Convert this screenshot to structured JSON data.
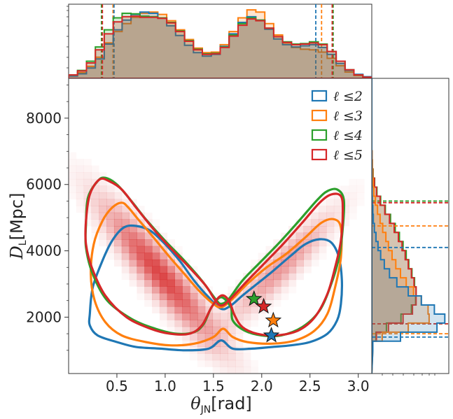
{
  "chart_data": {
    "type": "scatter",
    "subtype": "corner-plot-2d-density-with-marginal-histograms",
    "xlabel_main": "θ",
    "xlabel_sub": "JN",
    "xlabel_unit": "[rad]",
    "ylabel_main": "D",
    "ylabel_sub": "L",
    "ylabel_unit": "[Mpc]",
    "xlim": [
      0,
      3.14
    ],
    "ylim": [
      300,
      9200
    ],
    "xticks": [
      0.5,
      1.0,
      1.5,
      2.0,
      2.5,
      3.0
    ],
    "xtick_labels": [
      "0.5",
      "1.0",
      "1.5",
      "2.0",
      "2.5",
      "3.0"
    ],
    "yticks": [
      2000,
      4000,
      6000,
      8000
    ],
    "ytick_labels": [
      "2000",
      "4000",
      "6000",
      "8000"
    ],
    "colors": {
      "l2": "#1f77b4",
      "l3": "#ff7f0e",
      "l4": "#2ca02c",
      "l5": "#d62728",
      "density": "#d62728"
    },
    "series": [
      {
        "name": "ℓ ≤2",
        "key": "l2",
        "contour": [
          [
            0.22,
            2100
          ],
          [
            0.25,
            2900
          ],
          [
            0.35,
            3700
          ],
          [
            0.45,
            4300
          ],
          [
            0.57,
            4700
          ],
          [
            0.7,
            4750
          ],
          [
            0.85,
            4600
          ],
          [
            1.0,
            4200
          ],
          [
            1.15,
            3700
          ],
          [
            1.3,
            3100
          ],
          [
            1.45,
            2600
          ],
          [
            1.58,
            2250
          ],
          [
            1.68,
            2350
          ],
          [
            1.8,
            2650
          ],
          [
            1.95,
            3000
          ],
          [
            2.1,
            3350
          ],
          [
            2.3,
            3850
          ],
          [
            2.45,
            4200
          ],
          [
            2.6,
            4350
          ],
          [
            2.72,
            4250
          ],
          [
            2.8,
            3800
          ],
          [
            2.83,
            3100
          ],
          [
            2.82,
            2400
          ],
          [
            2.78,
            1900
          ],
          [
            2.68,
            1500
          ],
          [
            2.5,
            1250
          ],
          [
            2.3,
            1150
          ],
          [
            2.1,
            1100
          ],
          [
            1.9,
            1050
          ],
          [
            1.7,
            1050
          ],
          [
            1.58,
            1300
          ],
          [
            1.45,
            1050
          ],
          [
            1.2,
            1000
          ],
          [
            0.95,
            1050
          ],
          [
            0.7,
            1100
          ],
          [
            0.5,
            1250
          ],
          [
            0.3,
            1450
          ],
          [
            0.22,
            1750
          ]
        ],
        "marginal_x": [
          0.4,
          0.8,
          1.8,
          3.4,
          6.0,
          8.5,
          10.2,
          11.2,
          11.6,
          11.4,
          10.6,
          9.2,
          7.5,
          5.8,
          4.5,
          3.9,
          4.2,
          5.6,
          7.8,
          9.8,
          10.8,
          10.2,
          8.6,
          6.9,
          5.9,
          5.5,
          5.7,
          5.9,
          5.4,
          4.2,
          2.6,
          1.4,
          0.7,
          0.3
        ],
        "marginal_y": [
          0.2,
          5.5,
          12.5,
          14.0,
          12.0,
          9.5,
          7.0,
          4.8,
          3.4,
          2.4,
          1.7,
          1.2,
          0.8,
          0.5,
          0.3,
          0.2,
          0.1,
          0.05,
          0.02,
          0.01,
          0.0,
          0.0,
          0.0,
          0.0,
          0.0,
          0.0,
          0.0,
          0.0,
          0.0,
          0.0
        ],
        "x_credible": [
          0.47,
          2.56
        ],
        "y_credible": [
          1400,
          4100
        ],
        "injection": [
          2.1,
          1450
        ]
      },
      {
        "name": "ℓ ≤3",
        "key": "l3",
        "contour": [
          [
            0.23,
            3300
          ],
          [
            0.26,
            4200
          ],
          [
            0.35,
            4900
          ],
          [
            0.45,
            5300
          ],
          [
            0.55,
            5450
          ],
          [
            0.62,
            5300
          ],
          [
            0.72,
            4950
          ],
          [
            0.88,
            4400
          ],
          [
            1.05,
            3800
          ],
          [
            1.2,
            3300
          ],
          [
            1.35,
            2800
          ],
          [
            1.5,
            2400
          ],
          [
            1.58,
            2300
          ],
          [
            1.68,
            2500
          ],
          [
            1.85,
            3000
          ],
          [
            2.05,
            3500
          ],
          [
            2.25,
            3900
          ],
          [
            2.45,
            4400
          ],
          [
            2.62,
            4850
          ],
          [
            2.75,
            4950
          ],
          [
            2.82,
            4700
          ],
          [
            2.82,
            3800
          ],
          [
            2.76,
            2900
          ],
          [
            2.68,
            2100
          ],
          [
            2.55,
            1600
          ],
          [
            2.35,
            1300
          ],
          [
            2.1,
            1200
          ],
          [
            1.85,
            1250
          ],
          [
            1.7,
            1400
          ],
          [
            1.6,
            1650
          ],
          [
            1.5,
            1400
          ],
          [
            1.3,
            1200
          ],
          [
            1.05,
            1150
          ],
          [
            0.8,
            1250
          ],
          [
            0.55,
            1450
          ],
          [
            0.38,
            1850
          ],
          [
            0.27,
            2500
          ]
        ],
        "marginal_x": [
          0.5,
          1.0,
          2.1,
          3.7,
          6.2,
          8.2,
          9.6,
          10.7,
          11.4,
          11.6,
          11.2,
          10.1,
          8.5,
          6.8,
          5.3,
          4.5,
          4.6,
          5.9,
          8.2,
          10.6,
          12.0,
          11.6,
          9.6,
          7.6,
          6.2,
          5.4,
          5.1,
          5.0,
          4.6,
          3.5,
          2.2,
          1.1,
          0.5,
          0.2
        ],
        "marginal_y": [
          0.2,
          2.0,
          7.0,
          11.0,
          10.8,
          9.5,
          8.0,
          6.6,
          5.5,
          4.6,
          3.9,
          3.2,
          2.7,
          2.1,
          1.6,
          1.1,
          0.7,
          0.4,
          0.25,
          0.15,
          0.1,
          0.05,
          0.0,
          0.0,
          0.0,
          0.0,
          0.0,
          0.0,
          0.0,
          0.0
        ],
        "x_credible": [
          0.46,
          2.62
        ],
        "y_credible": [
          1500,
          4750
        ],
        "injection": [
          2.12,
          1900
        ]
      },
      {
        "name": "ℓ ≤4",
        "key": "l4",
        "contour": [
          [
            0.18,
            4800
          ],
          [
            0.2,
            5600
          ],
          [
            0.3,
            6100
          ],
          [
            0.38,
            6200
          ],
          [
            0.5,
            6000
          ],
          [
            0.65,
            5500
          ],
          [
            0.8,
            4950
          ],
          [
            1.0,
            4300
          ],
          [
            1.2,
            3700
          ],
          [
            1.38,
            3100
          ],
          [
            1.52,
            2550
          ],
          [
            1.58,
            2400
          ],
          [
            1.66,
            2550
          ],
          [
            1.8,
            3100
          ],
          [
            2.0,
            3700
          ],
          [
            2.2,
            4300
          ],
          [
            2.4,
            4950
          ],
          [
            2.58,
            5550
          ],
          [
            2.68,
            5800
          ],
          [
            2.78,
            5850
          ],
          [
            2.85,
            5550
          ],
          [
            2.84,
            4700
          ],
          [
            2.8,
            3800
          ],
          [
            2.72,
            3000
          ],
          [
            2.6,
            2200
          ],
          [
            2.42,
            1700
          ],
          [
            2.2,
            1450
          ],
          [
            2.0,
            1450
          ],
          [
            1.82,
            1600
          ],
          [
            1.7,
            1900
          ],
          [
            1.68,
            2300
          ],
          [
            1.58,
            2600
          ],
          [
            1.48,
            2300
          ],
          [
            1.4,
            1800
          ],
          [
            1.3,
            1550
          ],
          [
            1.12,
            1500
          ],
          [
            0.9,
            1650
          ],
          [
            0.65,
            1950
          ],
          [
            0.4,
            2500
          ],
          [
            0.25,
            3300
          ],
          [
            0.18,
            4100
          ]
        ],
        "marginal_x": [
          0.6,
          1.4,
          3.0,
          5.5,
          8.5,
          10.6,
          11.4,
          11.3,
          10.9,
          10.8,
          10.6,
          9.8,
          8.3,
          6.6,
          5.1,
          4.3,
          4.4,
          5.5,
          7.6,
          9.6,
          10.6,
          10.2,
          8.8,
          7.3,
          6.4,
          6.0,
          6.1,
          6.4,
          6.0,
          4.7,
          3.0,
          1.5,
          0.6,
          0.2
        ],
        "marginal_y": [
          0.1,
          0.8,
          2.8,
          5.6,
          7.6,
          8.4,
          8.5,
          8.2,
          7.7,
          7.1,
          6.6,
          6.0,
          5.3,
          4.5,
          3.6,
          2.6,
          1.7,
          1.0,
          0.55,
          0.25,
          0.1,
          0.05,
          0.0,
          0.0,
          0.0,
          0.0,
          0.0,
          0.0,
          0.0,
          0.0
        ],
        "x_credible": [
          0.34,
          2.74
        ],
        "y_credible": [
          1800,
          5500
        ],
        "injection": [
          1.92,
          2550
        ]
      },
      {
        "name": "ℓ ≤5",
        "key": "l5",
        "contour": [
          [
            0.18,
            4900
          ],
          [
            0.22,
            5700
          ],
          [
            0.32,
            6150
          ],
          [
            0.42,
            6100
          ],
          [
            0.55,
            5850
          ],
          [
            0.7,
            5300
          ],
          [
            0.88,
            4650
          ],
          [
            1.05,
            4100
          ],
          [
            1.25,
            3500
          ],
          [
            1.42,
            2950
          ],
          [
            1.52,
            2500
          ],
          [
            1.58,
            2350
          ],
          [
            1.66,
            2500
          ],
          [
            1.82,
            3000
          ],
          [
            2.02,
            3600
          ],
          [
            2.22,
            4200
          ],
          [
            2.42,
            4850
          ],
          [
            2.6,
            5450
          ],
          [
            2.72,
            5700
          ],
          [
            2.82,
            5650
          ],
          [
            2.84,
            5200
          ],
          [
            2.82,
            4300
          ],
          [
            2.76,
            3500
          ],
          [
            2.68,
            2700
          ],
          [
            2.55,
            2000
          ],
          [
            2.38,
            1600
          ],
          [
            2.15,
            1450
          ],
          [
            1.95,
            1500
          ],
          [
            1.8,
            1700
          ],
          [
            1.72,
            2050
          ],
          [
            1.66,
            2500
          ],
          [
            1.58,
            2650
          ],
          [
            1.48,
            2300
          ],
          [
            1.38,
            1750
          ],
          [
            1.25,
            1500
          ],
          [
            1.05,
            1500
          ],
          [
            0.85,
            1650
          ],
          [
            0.6,
            2000
          ],
          [
            0.38,
            2650
          ],
          [
            0.24,
            3500
          ],
          [
            0.18,
            4200
          ]
        ],
        "marginal_x": [
          0.6,
          1.3,
          2.7,
          5.0,
          7.8,
          9.9,
          10.8,
          10.9,
          10.7,
          10.7,
          10.5,
          9.7,
          8.2,
          6.5,
          5.0,
          4.2,
          4.3,
          5.4,
          7.4,
          9.3,
          10.4,
          10.1,
          8.8,
          7.3,
          6.3,
          5.9,
          6.0,
          6.2,
          5.9,
          4.7,
          3.0,
          1.5,
          0.6,
          0.2
        ],
        "marginal_y": [
          0.1,
          0.9,
          3.2,
          6.0,
          7.8,
          8.5,
          8.5,
          8.1,
          7.6,
          7.0,
          6.4,
          5.8,
          5.1,
          4.3,
          3.4,
          2.5,
          1.6,
          0.9,
          0.5,
          0.2,
          0.1,
          0.05,
          0.0,
          0.0,
          0.0,
          0.0,
          0.0,
          0.0,
          0.0,
          0.0
        ],
        "x_credible": [
          0.35,
          2.73
        ],
        "y_credible": [
          1800,
          5450
        ],
        "injection": [
          2.02,
          2320
        ]
      }
    ],
    "density_blobs": [
      {
        "center": [
          0.95,
          3300
        ],
        "sigma_along": 0.55,
        "sigma_across": 0.11,
        "angle_slope": -3500,
        "peak": 1.0
      },
      {
        "center": [
          2.2,
          3500
        ],
        "sigma_along": 0.5,
        "sigma_across": 0.1,
        "angle_slope": 3000,
        "peak": 0.55
      }
    ],
    "legend_position": "upper-right"
  }
}
